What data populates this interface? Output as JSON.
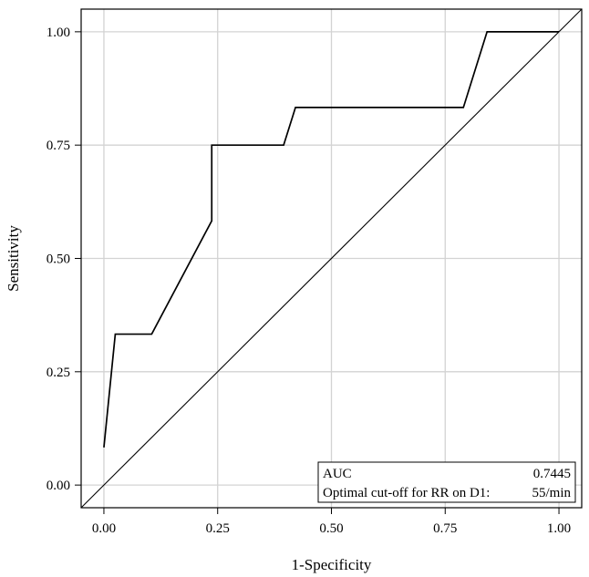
{
  "chart_data": {
    "type": "line",
    "title": "",
    "xlabel": "1-Specificity",
    "ylabel": "Sensitivity",
    "xlim": [
      -0.05,
      1.05
    ],
    "ylim": [
      -0.05,
      1.05
    ],
    "x_ticks": [
      0,
      0.25,
      0.5,
      0.75,
      1
    ],
    "x_tick_labels": [
      "0.00",
      "0.25",
      "0.50",
      "0.75",
      "1.00"
    ],
    "y_ticks": [
      0,
      0.25,
      0.5,
      0.75,
      1
    ],
    "y_tick_labels": [
      "0.00",
      "0.25",
      "0.50",
      "0.75",
      "1.00"
    ],
    "grid": true,
    "series": [
      {
        "name": "ROC curve",
        "x": [
          0.0,
          0.025,
          0.105,
          0.237,
          0.237,
          0.395,
          0.421,
          0.79,
          0.842,
          1.0
        ],
        "y": [
          0.083,
          0.333,
          0.333,
          0.583,
          0.75,
          0.75,
          0.833,
          0.833,
          1.0,
          1.0
        ]
      },
      {
        "name": "Reference line",
        "x": [
          -0.05,
          1.05
        ],
        "y": [
          -0.05,
          1.05
        ]
      }
    ],
    "legend": {
      "position": "bottom-right",
      "rows": [
        {
          "label": "AUC",
          "value": "0.7445"
        },
        {
          "label": "Optimal cut-off for RR on D1:",
          "value": "55/min"
        }
      ]
    }
  }
}
